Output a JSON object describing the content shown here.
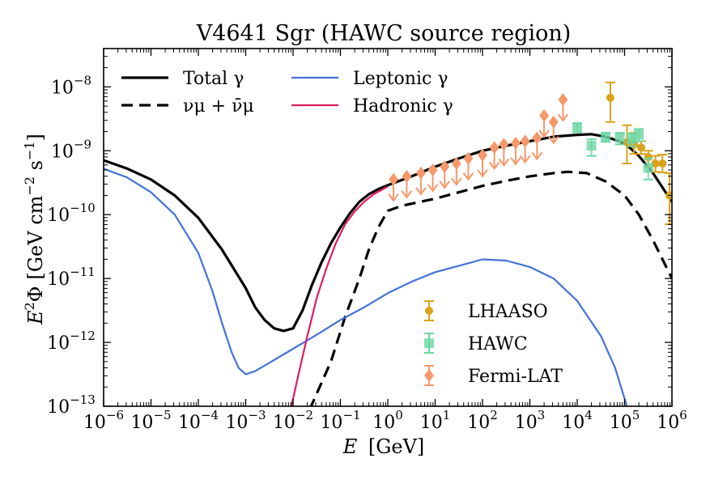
{
  "chart_data": {
    "type": "line",
    "title": "V4641 Sgr (HAWC source region)",
    "xlabel": {
      "var": "E",
      "unit": "[GeV]"
    },
    "ylabel": {
      "var": "E",
      "sup": "2",
      "sym": "Φ",
      "unit_open": "[GeV cm",
      "unit_exp1": "−2",
      "unit_mid": " s",
      "unit_exp2": "−1",
      "unit_close": "]"
    },
    "x_scale": "log",
    "y_scale": "log",
    "xlim_log10": [
      -6,
      6
    ],
    "ylim_log10": [
      -13,
      -7.4
    ],
    "x_ticks": [
      {
        "base": "10",
        "exp": "−6",
        "log": -6
      },
      {
        "base": "10",
        "exp": "−5",
        "log": -5
      },
      {
        "base": "10",
        "exp": "−4",
        "log": -4
      },
      {
        "base": "10",
        "exp": "−3",
        "log": -3
      },
      {
        "base": "10",
        "exp": "−2",
        "log": -2
      },
      {
        "base": "10",
        "exp": "−1",
        "log": -1
      },
      {
        "base": "10",
        "exp": "0",
        "log": 0
      },
      {
        "base": "10",
        "exp": "1",
        "log": 1
      },
      {
        "base": "10",
        "exp": "2",
        "log": 2
      },
      {
        "base": "10",
        "exp": "3",
        "log": 3
      },
      {
        "base": "10",
        "exp": "4",
        "log": 4
      },
      {
        "base": "10",
        "exp": "5",
        "log": 5
      },
      {
        "base": "10",
        "exp": "6",
        "log": 6
      }
    ],
    "y_ticks": [
      {
        "base": "10",
        "exp": "−13",
        "log": -13
      },
      {
        "base": "10",
        "exp": "−12",
        "log": -12
      },
      {
        "base": "10",
        "exp": "−11",
        "log": -11
      },
      {
        "base": "10",
        "exp": "−10",
        "log": -10
      },
      {
        "base": "10",
        "exp": "−9",
        "log": -9
      },
      {
        "base": "10",
        "exp": "−8",
        "log": -8
      }
    ],
    "series": [
      {
        "name": "Total γ",
        "key": "total",
        "color": "#000000",
        "dash": "solid",
        "points_log10": [
          [
            -6,
            -9.15
          ],
          [
            -5.5,
            -9.28
          ],
          [
            -5,
            -9.45
          ],
          [
            -4.5,
            -9.7
          ],
          [
            -4,
            -10.05
          ],
          [
            -3.5,
            -10.55
          ],
          [
            -3,
            -11.15
          ],
          [
            -2.8,
            -11.45
          ],
          [
            -2.6,
            -11.65
          ],
          [
            -2.4,
            -11.78
          ],
          [
            -2.2,
            -11.82
          ],
          [
            -2,
            -11.78
          ],
          [
            -1.8,
            -11.5
          ],
          [
            -1.6,
            -11.1
          ],
          [
            -1.4,
            -10.75
          ],
          [
            -1.2,
            -10.45
          ],
          [
            -1,
            -10.2
          ],
          [
            -0.8,
            -9.98
          ],
          [
            -0.6,
            -9.8
          ],
          [
            -0.4,
            -9.68
          ],
          [
            -0.2,
            -9.6
          ],
          [
            0,
            -9.54
          ],
          [
            0.5,
            -9.4
          ],
          [
            1,
            -9.25
          ],
          [
            1.5,
            -9.12
          ],
          [
            2,
            -9.0
          ],
          [
            2.5,
            -8.92
          ],
          [
            3,
            -8.85
          ],
          [
            3.5,
            -8.78
          ],
          [
            4,
            -8.75
          ],
          [
            4.3,
            -8.74
          ],
          [
            4.6,
            -8.78
          ],
          [
            5,
            -8.88
          ],
          [
            5.3,
            -9.08
          ],
          [
            5.6,
            -9.35
          ],
          [
            6,
            -9.8
          ]
        ]
      },
      {
        "name": "ν_μ + ν̄_μ",
        "key": "neutrino",
        "color": "#000000",
        "dash": "dashed",
        "points_log10": [
          [
            -1.65,
            -13.05
          ],
          [
            -1.5,
            -12.8
          ],
          [
            -1.2,
            -12.3
          ],
          [
            -0.9,
            -11.6
          ],
          [
            -0.6,
            -11.0
          ],
          [
            -0.4,
            -10.55
          ],
          [
            -0.2,
            -10.2
          ],
          [
            0,
            -9.94
          ],
          [
            0.3,
            -9.86
          ],
          [
            1,
            -9.75
          ],
          [
            1.5,
            -9.65
          ],
          [
            2,
            -9.55
          ],
          [
            2.5,
            -9.47
          ],
          [
            3,
            -9.4
          ],
          [
            3.5,
            -9.35
          ],
          [
            3.8,
            -9.33
          ],
          [
            4.2,
            -9.35
          ],
          [
            4.6,
            -9.48
          ],
          [
            5,
            -9.7
          ],
          [
            5.3,
            -10.0
          ],
          [
            5.6,
            -10.4
          ],
          [
            6,
            -11.0
          ]
        ]
      },
      {
        "name": "Leptonic γ",
        "key": "leptonic",
        "color": "#4472d8",
        "dash": "solid",
        "points_log10": [
          [
            -6,
            -9.28
          ],
          [
            -5.5,
            -9.42
          ],
          [
            -5,
            -9.65
          ],
          [
            -4.5,
            -10.0
          ],
          [
            -4,
            -10.6
          ],
          [
            -3.7,
            -11.2
          ],
          [
            -3.5,
            -11.7
          ],
          [
            -3.3,
            -12.15
          ],
          [
            -3.15,
            -12.4
          ],
          [
            -3,
            -12.5
          ],
          [
            -2.8,
            -12.45
          ],
          [
            -2.5,
            -12.32
          ],
          [
            -2,
            -12.1
          ],
          [
            -1.5,
            -11.88
          ],
          [
            -1,
            -11.65
          ],
          [
            -0.5,
            -11.45
          ],
          [
            0,
            -11.23
          ],
          [
            0.5,
            -11.05
          ],
          [
            1,
            -10.9
          ],
          [
            1.5,
            -10.8
          ],
          [
            2,
            -10.7
          ],
          [
            2.5,
            -10.72
          ],
          [
            3,
            -10.82
          ],
          [
            3.5,
            -11.0
          ],
          [
            4,
            -11.35
          ],
          [
            4.5,
            -11.9
          ],
          [
            4.8,
            -12.4
          ],
          [
            5.05,
            -13.0
          ]
        ]
      },
      {
        "name": "Hadronic γ",
        "key": "hadronic",
        "color": "#dc1e5a",
        "dash": "solid",
        "points_log10": [
          [
            -2.05,
            -13.05
          ],
          [
            -1.9,
            -12.55
          ],
          [
            -1.7,
            -11.9
          ],
          [
            -1.5,
            -11.3
          ],
          [
            -1.3,
            -10.85
          ],
          [
            -1.1,
            -10.45
          ],
          [
            -0.9,
            -10.15
          ],
          [
            -0.7,
            -9.95
          ],
          [
            -0.5,
            -9.8
          ],
          [
            -0.3,
            -9.68
          ],
          [
            -0.1,
            -9.6
          ],
          [
            0,
            -9.56
          ]
        ]
      }
    ],
    "observations": [
      {
        "name": "LHAASO",
        "key": "lhaaso",
        "color": "#d9a21a",
        "marker": "circle",
        "points_log10": [
          [
            4.7,
            -8.17,
            -7.93,
            -8.55
          ],
          [
            5.05,
            -8.87,
            -8.6,
            -9.2
          ],
          [
            5.2,
            -8.9,
            -8.72,
            -9.05
          ],
          [
            5.35,
            -8.95,
            -8.85,
            -9.05
          ],
          [
            5.5,
            -9.1,
            -9.0,
            -9.25
          ],
          [
            5.65,
            -9.2,
            -9.08,
            -9.33
          ],
          [
            5.8,
            -9.2,
            -9.06,
            -9.34
          ],
          [
            5.95,
            -9.7,
            -9.35,
            -10.15
          ]
        ]
      },
      {
        "name": "HAWC",
        "key": "hawc",
        "color": "#6bd6a4",
        "marker": "square",
        "points_log10": [
          [
            4.0,
            -8.63,
            -8.57,
            -8.71
          ],
          [
            4.3,
            -8.92,
            -8.82,
            -9.08
          ],
          [
            4.6,
            -8.78,
            -8.72,
            -8.86
          ],
          [
            4.9,
            -8.8,
            -8.72,
            -8.9
          ],
          [
            5.15,
            -8.82,
            -8.73,
            -8.93
          ],
          [
            5.3,
            -8.75,
            -8.66,
            -8.85
          ],
          [
            5.5,
            -9.27,
            -9.12,
            -9.45
          ]
        ]
      },
      {
        "name": "Fermi-LAT",
        "key": "fermi",
        "color": "#f5986a",
        "marker": "diamond",
        "upper_limit": true,
        "points_log10": [
          [
            0.12,
            -9.45
          ],
          [
            0.4,
            -9.4
          ],
          [
            0.7,
            -9.35
          ],
          [
            0.95,
            -9.3
          ],
          [
            1.2,
            -9.25
          ],
          [
            1.45,
            -9.2
          ],
          [
            1.7,
            -9.12
          ],
          [
            2.0,
            -9.07
          ],
          [
            2.25,
            -8.95
          ],
          [
            2.45,
            -8.9
          ],
          [
            2.7,
            -8.88
          ],
          [
            2.9,
            -8.85
          ],
          [
            3.15,
            -8.8
          ],
          [
            3.3,
            -8.45
          ],
          [
            3.5,
            -8.55
          ],
          [
            3.7,
            -8.2
          ]
        ]
      }
    ],
    "legend_lines": [
      {
        "key": "total",
        "text": "Total γ"
      },
      {
        "key": "neutrino",
        "text": "νμ + ν̄μ"
      },
      {
        "key": "leptonic",
        "text": "Leptonic γ"
      },
      {
        "key": "hadronic",
        "text": "Hadronic γ"
      }
    ],
    "legend_data": [
      {
        "key": "lhaaso",
        "text": "LHAASO"
      },
      {
        "key": "hawc",
        "text": "HAWC"
      },
      {
        "key": "fermi",
        "text": "Fermi-LAT"
      }
    ]
  }
}
